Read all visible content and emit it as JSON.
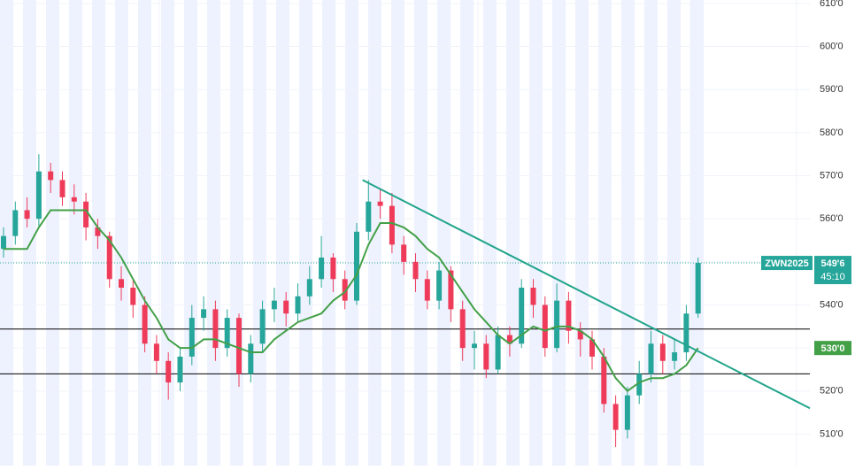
{
  "chart_data": {
    "type": "candlestick",
    "symbol": "ZWN2025",
    "open": [
      553,
      556,
      562,
      560,
      571,
      569,
      565,
      564,
      558,
      556,
      546,
      544,
      540,
      531,
      527,
      522,
      528,
      537,
      539,
      530,
      537,
      524,
      531,
      539,
      541,
      538,
      542,
      546,
      551,
      546,
      541,
      557,
      564,
      563,
      554,
      550,
      546,
      541,
      548,
      539,
      530,
      531,
      525,
      533,
      531,
      544,
      540,
      530,
      541,
      534,
      532,
      528,
      517,
      511,
      519,
      524,
      531,
      527,
      529,
      538
    ],
    "high": [
      558,
      564,
      565,
      575,
      573,
      571,
      568,
      566,
      560,
      557,
      549,
      546,
      542,
      533,
      529,
      530,
      540,
      542,
      541,
      539,
      538,
      533,
      541,
      544,
      543,
      545,
      549,
      556,
      552,
      548,
      559,
      569,
      567,
      566,
      556,
      552,
      548,
      550,
      549,
      541,
      534,
      533,
      535,
      535,
      546,
      546,
      542,
      545,
      543,
      536,
      534,
      530,
      519,
      521,
      527,
      534,
      533,
      532,
      540,
      551
    ],
    "low": [
      551,
      554,
      558,
      558,
      566,
      563,
      561,
      555,
      553,
      544,
      541,
      537,
      529,
      524,
      518,
      520,
      526,
      534,
      527,
      528,
      521,
      522,
      529,
      536,
      535,
      536,
      540,
      544,
      543,
      539,
      540,
      555,
      560,
      552,
      547,
      543,
      539,
      539,
      536,
      527,
      525,
      523,
      524,
      528,
      530,
      537,
      528,
      529,
      531,
      528,
      525,
      515,
      507,
      509,
      517,
      522,
      524,
      525,
      527,
      537
    ],
    "close": [
      556,
      562,
      560,
      571,
      569,
      565,
      564,
      558,
      556,
      546,
      544,
      540,
      531,
      527,
      522,
      528,
      537,
      539,
      530,
      537,
      524,
      531,
      539,
      541,
      538,
      542,
      546,
      551,
      546,
      541,
      557,
      564,
      563,
      554,
      550,
      546,
      541,
      548,
      539,
      530,
      531,
      525,
      533,
      531,
      544,
      540,
      530,
      541,
      534,
      532,
      528,
      517,
      511,
      519,
      524,
      531,
      527,
      529,
      538,
      549.75
    ],
    "ma": [
      553,
      553,
      553,
      558,
      562,
      562,
      562,
      562,
      558,
      555,
      551,
      546,
      541,
      537,
      532,
      530,
      530,
      532,
      532,
      531,
      530,
      529,
      529,
      532,
      534,
      536,
      537,
      538,
      541,
      543,
      547,
      554,
      559,
      559,
      558,
      556,
      553,
      551,
      547,
      543,
      539,
      536,
      533,
      531,
      533,
      535,
      534,
      535,
      535,
      534,
      532,
      528,
      523,
      520,
      522,
      523,
      523,
      524,
      526,
      530
    ],
    "up_color": "#26a69a",
    "down_color": "#ef3b5a",
    "ma_color": "#43a047",
    "trendline": {
      "x": [
        30.5,
        68.5
      ],
      "y": [
        569,
        516
      ],
      "color": "#20a48a"
    },
    "levels": [
      534.4,
      524
    ],
    "last_price": {
      "value": 549.75,
      "label": "549'6"
    },
    "countdown": "45:10",
    "ma_last": {
      "value": 530,
      "label": "530'0"
    },
    "ylim": [
      502.7,
      610.8
    ],
    "yticks": [
      {
        "value": 510,
        "label": "510'0"
      },
      {
        "value": 520,
        "label": "520'0"
      },
      {
        "value": 530,
        "label": "530'0"
      },
      {
        "value": 540,
        "label": "540'0"
      },
      {
        "value": 550,
        "label": "550'0"
      },
      {
        "value": 560,
        "label": "560'0"
      },
      {
        "value": 570,
        "label": "570'0"
      },
      {
        "value": 580,
        "label": "580'0"
      },
      {
        "value": 590,
        "label": "590'0"
      },
      {
        "value": 600,
        "label": "600'0"
      },
      {
        "value": 610,
        "label": "610'0"
      }
    ],
    "grid": true
  }
}
